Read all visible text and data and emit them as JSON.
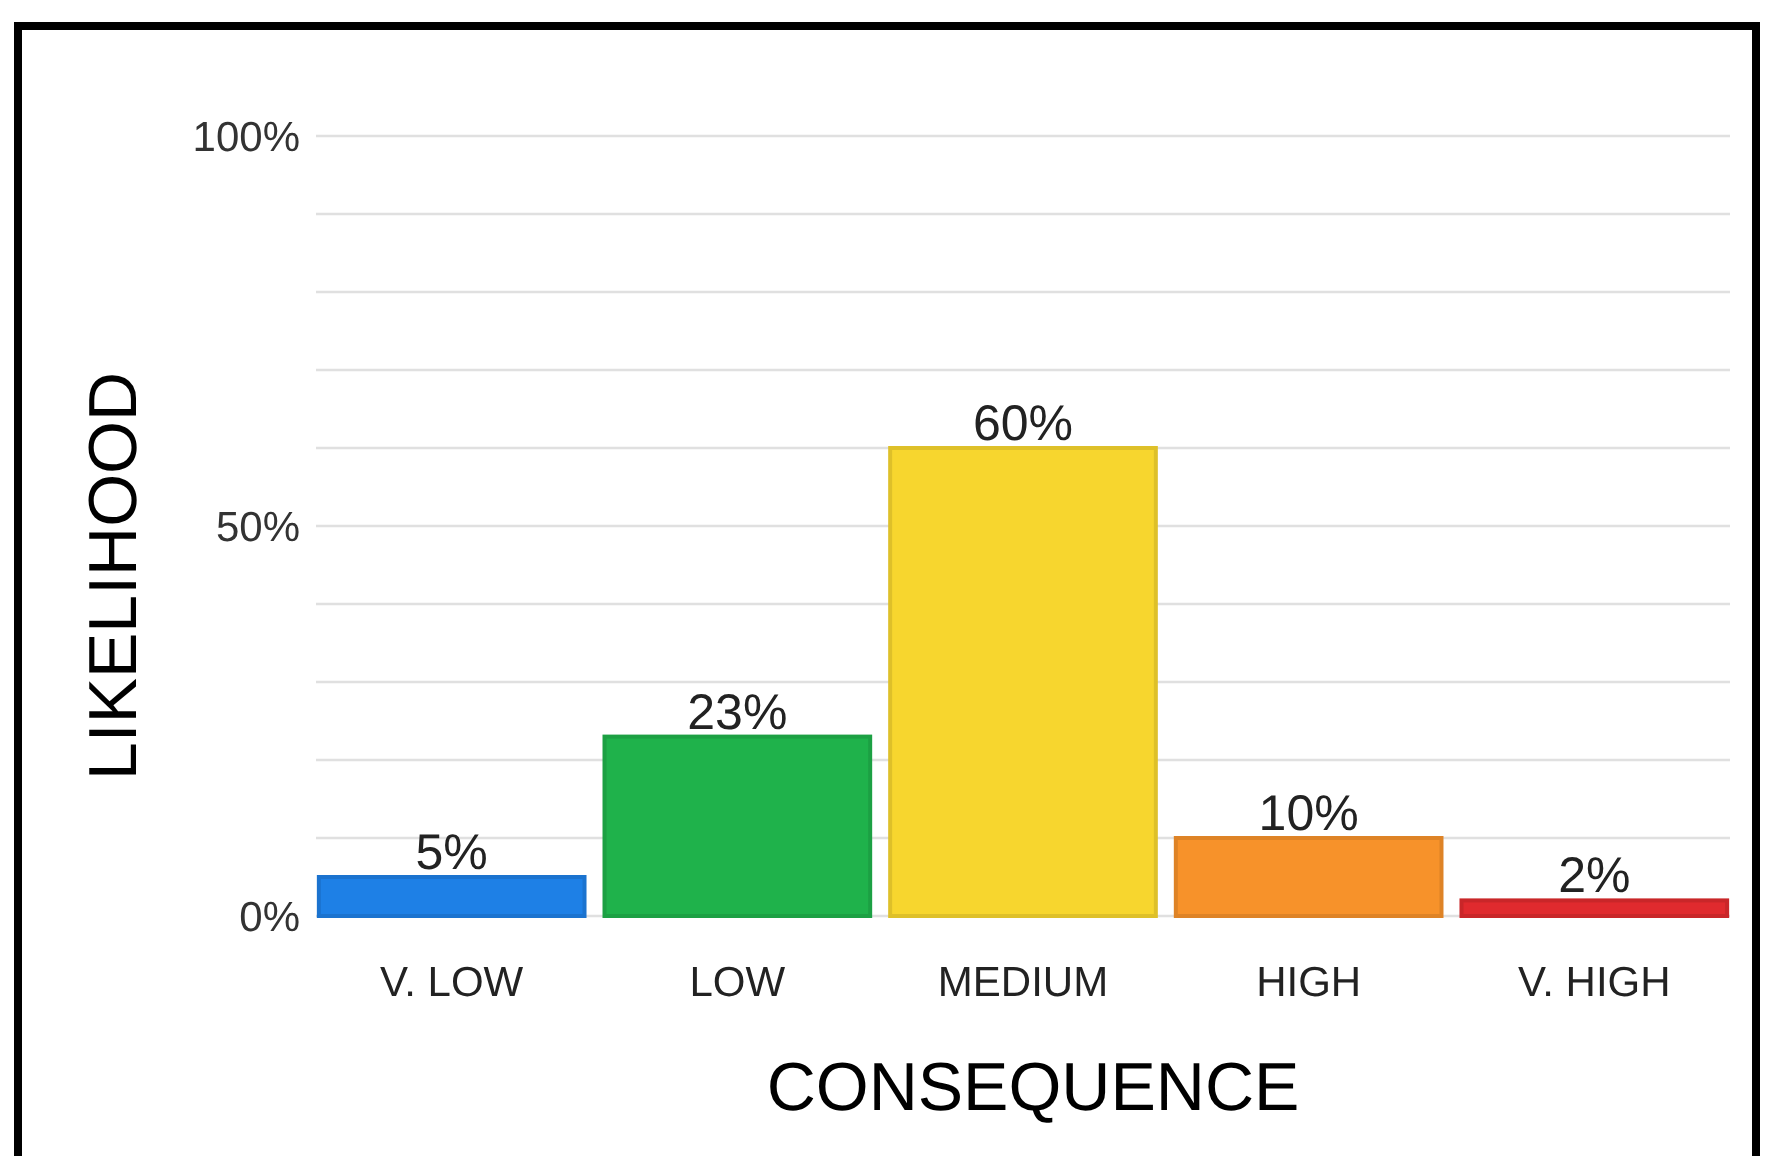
{
  "chart_data": {
    "type": "bar",
    "xlabel": "CONSEQUENCE",
    "ylabel": "LIKELIHOOD",
    "categories": [
      "V. LOW",
      "LOW",
      "MEDIUM",
      "HIGH",
      "V. HIGH"
    ],
    "values": [
      5,
      23,
      60,
      10,
      2
    ],
    "value_labels": [
      "5%",
      "23%",
      "60%",
      "10%",
      "2%"
    ],
    "colors": [
      "#1e80e6",
      "#1fb24b",
      "#f7d62e",
      "#f7922a",
      "#e02a2e"
    ],
    "ylim": [
      0,
      100
    ],
    "yticks": [
      {
        "value": 0,
        "label": "0%"
      },
      {
        "value": 10,
        "label": null
      },
      {
        "value": 20,
        "label": null
      },
      {
        "value": 30,
        "label": null
      },
      {
        "value": 40,
        "label": null
      },
      {
        "value": 50,
        "label": "50%"
      },
      {
        "value": 60,
        "label": null
      },
      {
        "value": 70,
        "label": null
      },
      {
        "value": 80,
        "label": null
      },
      {
        "value": 90,
        "label": null
      },
      {
        "value": 100,
        "label": "100%"
      }
    ],
    "grid": "y"
  }
}
